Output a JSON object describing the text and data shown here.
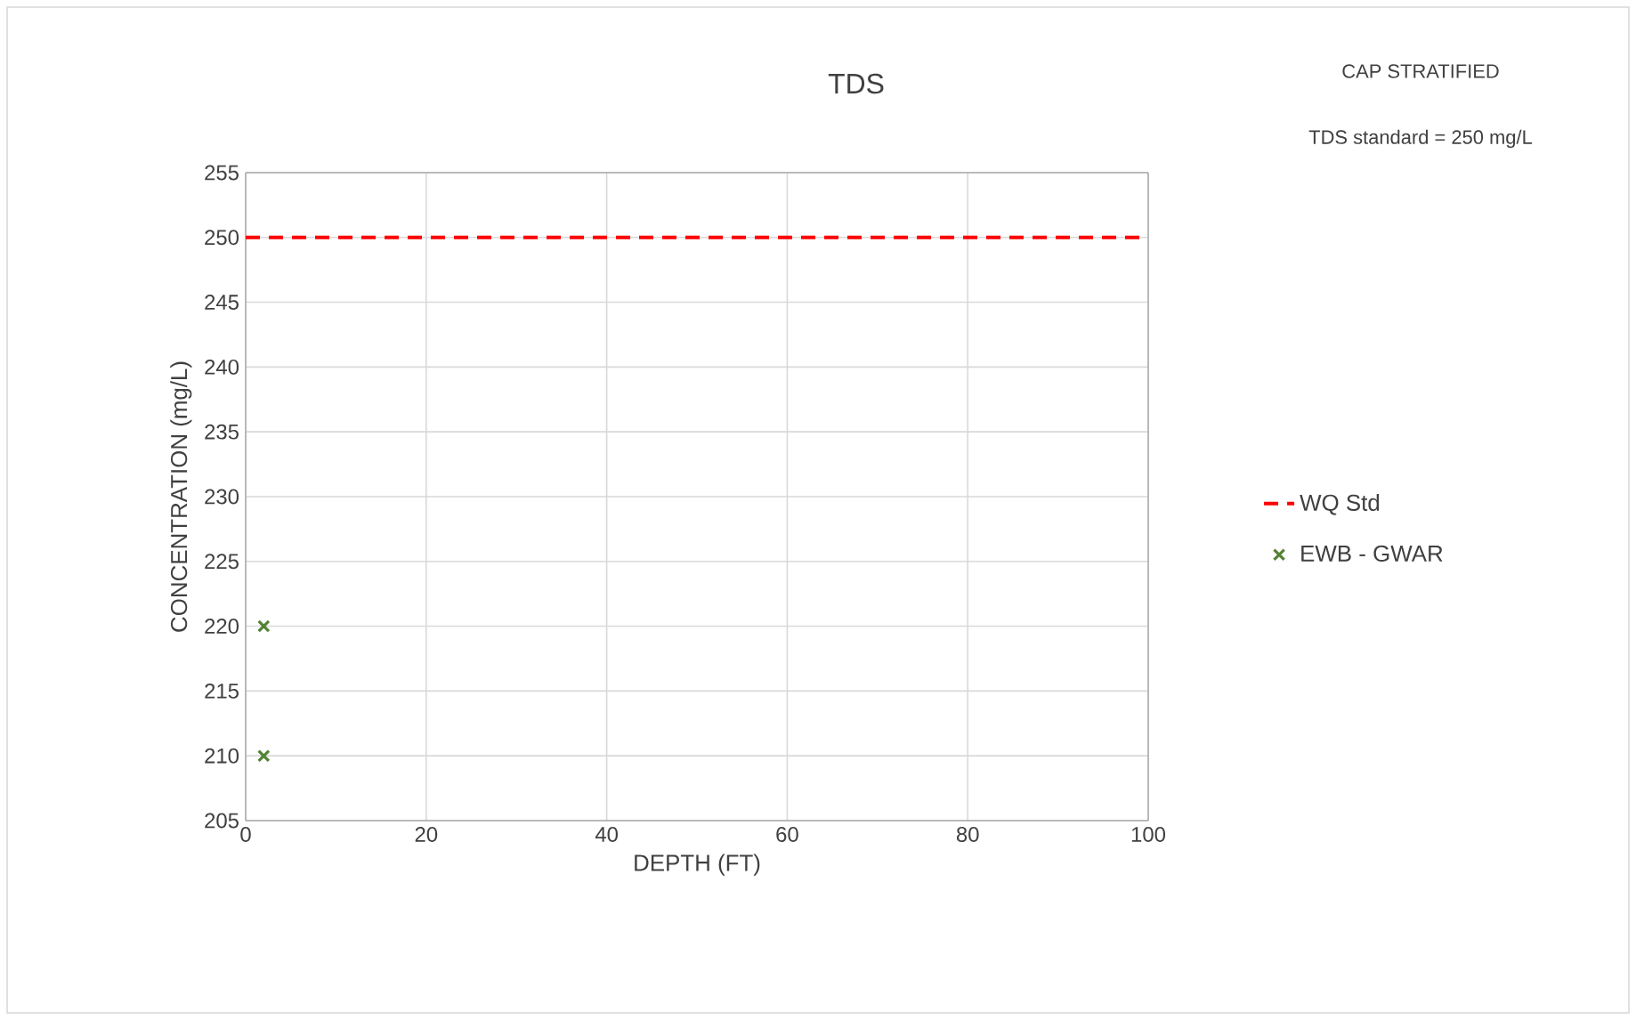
{
  "chart_data": {
    "type": "scatter",
    "title": "TDS",
    "xlabel": "DEPTH (FT)",
    "ylabel": "CONCENTRATION (mg/L)",
    "annotations": [
      "CAP STRATIFIED",
      "TDS standard = 250 mg/L"
    ],
    "series": [
      {
        "name": "WQ Std",
        "type": "line",
        "color": "#ff0000",
        "line_style": "dashed",
        "marker": "none",
        "x": [
          0,
          100
        ],
        "values": [
          250,
          250
        ]
      },
      {
        "name": "EWB - GWAR",
        "color": "#548235",
        "marker": "cross",
        "x": [
          2,
          2
        ],
        "values": [
          220,
          210
        ]
      }
    ],
    "xlim": [
      0,
      100
    ],
    "xticks": [
      0,
      20,
      40,
      60,
      80,
      100
    ],
    "ylim": [
      205,
      255
    ],
    "yticks": [
      205,
      210,
      215,
      220,
      225,
      230,
      235,
      240,
      245,
      250,
      255
    ],
    "grid": true,
    "legend": "right"
  }
}
